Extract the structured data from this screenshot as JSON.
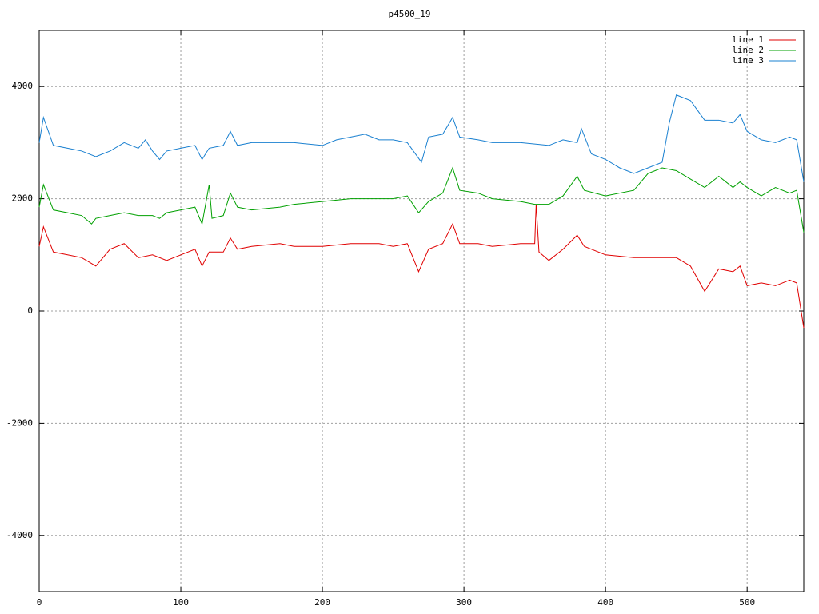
{
  "chart_data": {
    "type": "line",
    "title": "p4500_19",
    "xlim": [
      0,
      540
    ],
    "ylim": [
      -5000,
      5000
    ],
    "xticks": [
      0,
      100,
      200,
      300,
      400,
      500
    ],
    "yticks": [
      -4000,
      -2000,
      0,
      2000,
      4000
    ],
    "grid": true,
    "legend": "top-right",
    "series": [
      {
        "name": "line 1",
        "color": "#e00000",
        "x": [
          0,
          3,
          10,
          20,
          30,
          40,
          50,
          60,
          70,
          80,
          90,
          100,
          110,
          115,
          120,
          130,
          135,
          140,
          150,
          170,
          180,
          200,
          220,
          240,
          250,
          260,
          268,
          275,
          285,
          292,
          297,
          310,
          320,
          340,
          350,
          351,
          353,
          360,
          370,
          380,
          385,
          400,
          420,
          430,
          440,
          450,
          460,
          470,
          480,
          490,
          495,
          500,
          510,
          520,
          530,
          535,
          540
        ],
        "values": [
          1150,
          1500,
          1050,
          1000,
          950,
          800,
          1100,
          1200,
          950,
          1000,
          900,
          1000,
          1100,
          800,
          1050,
          1050,
          1300,
          1100,
          1150,
          1200,
          1150,
          1150,
          1200,
          1200,
          1150,
          1200,
          700,
          1100,
          1200,
          1550,
          1200,
          1200,
          1150,
          1200,
          1200,
          1900,
          1050,
          900,
          1100,
          1350,
          1150,
          1000,
          950,
          950,
          950,
          950,
          800,
          350,
          750,
          700,
          800,
          450,
          500,
          450,
          550,
          500,
          -300
        ]
      },
      {
        "name": "line 2",
        "color": "#00a000",
        "x": [
          0,
          3,
          10,
          20,
          30,
          37,
          40,
          50,
          60,
          70,
          80,
          85,
          90,
          100,
          110,
          115,
          120,
          122,
          130,
          135,
          140,
          150,
          170,
          180,
          200,
          220,
          240,
          250,
          260,
          268,
          275,
          285,
          292,
          297,
          310,
          320,
          340,
          350,
          360,
          370,
          380,
          385,
          400,
          420,
          430,
          440,
          450,
          460,
          470,
          480,
          490,
          495,
          500,
          510,
          520,
          530,
          535,
          540
        ],
        "values": [
          1850,
          2250,
          1800,
          1750,
          1700,
          1550,
          1650,
          1700,
          1750,
          1700,
          1700,
          1650,
          1750,
          1800,
          1850,
          1550,
          2250,
          1650,
          1700,
          2100,
          1850,
          1800,
          1850,
          1900,
          1950,
          2000,
          2000,
          2000,
          2050,
          1750,
          1950,
          2100,
          2550,
          2150,
          2100,
          2000,
          1950,
          1900,
          1900,
          2050,
          2400,
          2150,
          2050,
          2150,
          2450,
          2550,
          2500,
          2350,
          2200,
          2400,
          2200,
          2300,
          2200,
          2050,
          2200,
          2100,
          2150,
          1400
        ]
      },
      {
        "name": "line 3",
        "color": "#1a80d0",
        "x": [
          0,
          3,
          10,
          20,
          30,
          40,
          50,
          60,
          70,
          75,
          80,
          85,
          90,
          100,
          110,
          115,
          120,
          130,
          135,
          140,
          150,
          170,
          180,
          200,
          210,
          220,
          230,
          240,
          250,
          260,
          270,
          275,
          285,
          292,
          297,
          310,
          320,
          340,
          360,
          370,
          380,
          383,
          390,
          400,
          410,
          420,
          430,
          440,
          445,
          450,
          460,
          470,
          480,
          490,
          495,
          500,
          510,
          520,
          530,
          535,
          540
        ],
        "values": [
          3000,
          3450,
          2950,
          2900,
          2850,
          2750,
          2850,
          3000,
          2900,
          3050,
          2850,
          2700,
          2850,
          2900,
          2950,
          2700,
          2900,
          2950,
          3200,
          2950,
          3000,
          3000,
          3000,
          2950,
          3050,
          3100,
          3150,
          3050,
          3050,
          3000,
          2650,
          3100,
          3150,
          3450,
          3100,
          3050,
          3000,
          3000,
          2950,
          3050,
          3000,
          3250,
          2800,
          2700,
          2550,
          2450,
          2550,
          2650,
          3350,
          3850,
          3750,
          3400,
          3400,
          3350,
          3500,
          3200,
          3050,
          3000,
          3100,
          3050,
          2300
        ]
      }
    ]
  }
}
